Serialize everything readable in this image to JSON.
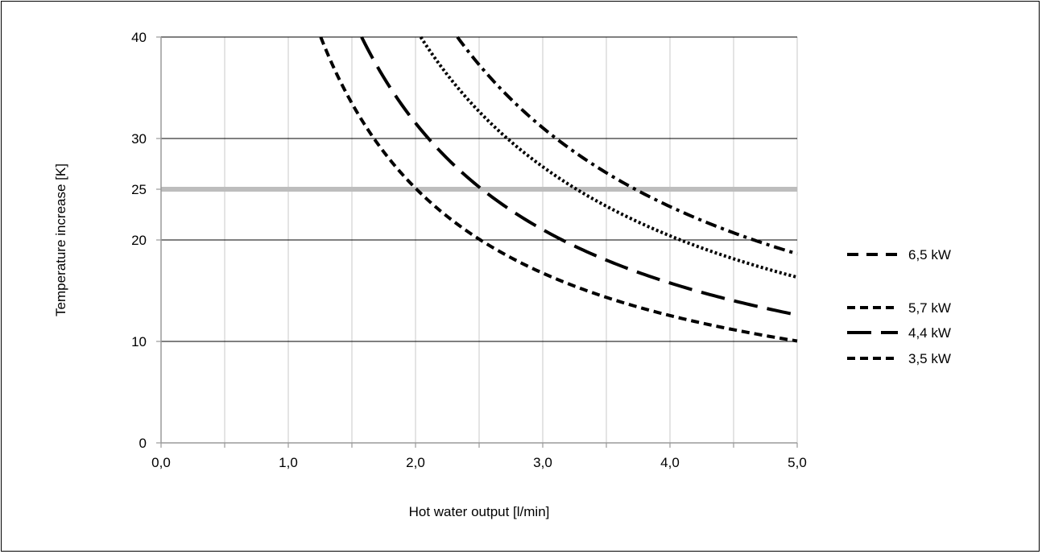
{
  "chart_data": {
    "type": "line",
    "title": "",
    "xlabel": "Hot water output [l/min]",
    "ylabel": "Temperature increase [K]",
    "xlim": [
      0,
      5
    ],
    "ylim": [
      0,
      40
    ],
    "x_ticks": [
      "0,0",
      "1,0",
      "2,0",
      "3,0",
      "4,0",
      "5,0"
    ],
    "x_tick_values": [
      0,
      1,
      2,
      3,
      4,
      5
    ],
    "x_minor_gridlines": [
      0.5,
      1.5,
      2.5,
      3.5,
      4.5
    ],
    "y_ticks": [
      "0",
      "10",
      "20",
      "25",
      "30",
      "40"
    ],
    "y_tick_values": [
      0,
      10,
      20,
      25,
      30,
      40
    ],
    "grid": true,
    "reference_line": {
      "y": 25,
      "color": "#bdbdbd"
    },
    "legend_position": "right",
    "series": [
      {
        "name": "6,5 kW",
        "dash": "dash-dot",
        "x": [
          2.33,
          2.5,
          3.0,
          3.5,
          4.0,
          4.5,
          5.0
        ],
        "y": [
          40,
          37.3,
          31.1,
          26.6,
          23.3,
          20.7,
          18.6
        ]
      },
      {
        "name": "5,7 kW",
        "dash": "dotted",
        "x": [
          2.04,
          2.5,
          3.0,
          3.5,
          4.0,
          4.5,
          5.0
        ],
        "y": [
          40,
          32.7,
          27.2,
          23.3,
          20.4,
          18.2,
          16.3
        ]
      },
      {
        "name": "4,4 kW",
        "dash": "long-dash",
        "x": [
          1.58,
          2.0,
          2.5,
          3.0,
          3.5,
          4.0,
          4.5,
          5.0
        ],
        "y": [
          40,
          31.5,
          25.2,
          21.0,
          18.0,
          15.8,
          14.0,
          12.6
        ]
      },
      {
        "name": "3,5 kW",
        "dash": "short-dash",
        "x": [
          1.29,
          1.5,
          2.0,
          2.5,
          3.0,
          3.5,
          4.0,
          4.5,
          5.0
        ],
        "y": [
          40,
          33.4,
          25.0,
          20.0,
          16.7,
          14.3,
          12.5,
          11.1,
          10.0
        ]
      }
    ]
  }
}
